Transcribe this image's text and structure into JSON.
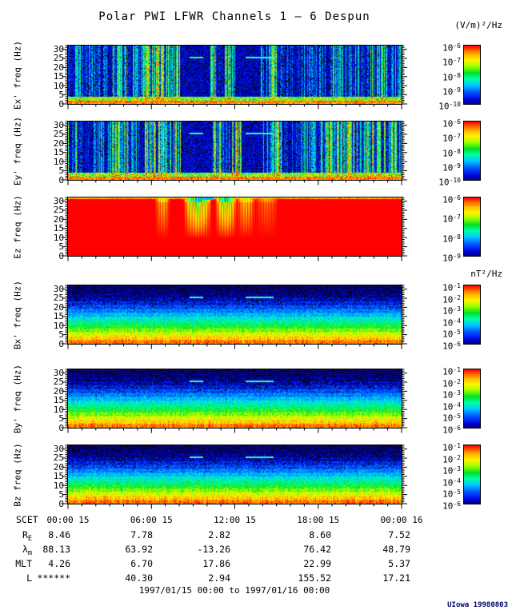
{
  "title": "Polar PWI LFWR Channels 1 — 6 Despun",
  "footer": {
    "credit": "UIowa 19980803"
  },
  "chart_data": {
    "type": "heatmap",
    "title": "Polar PWI LFWR Channels 1 — 6 Despun",
    "description": "Six stacked frequency-time spectrogram panels with rainbow color scale",
    "e_units_label": "(V/m)²/Hz",
    "b_units_label": "nT²/Hz",
    "time_axis": {
      "label": "SCET",
      "hours": 24,
      "major_tick_hours": 6,
      "minor_tick_hours": 1,
      "tick_labels": [
        "00:00 15",
        "06:00 15",
        "12:00 15",
        "18:00 15",
        "00:00 16"
      ],
      "range_text": "1997/01/15 00:00 to 1997/01/16 00:00"
    },
    "freq_axis": {
      "unit": "Hz",
      "min": 0,
      "max": 32,
      "ticks": [
        30,
        25,
        20,
        15,
        10,
        5,
        0
      ]
    },
    "panels": [
      {
        "id": "ex",
        "ylabel": "Ex' freq (Hz)",
        "quantity": "electric",
        "units": "(V/m)²/Hz",
        "colorbar_ticks": [
          "-6",
          "-7",
          "-8",
          "-9",
          "-10"
        ],
        "style": "electric",
        "seed": 11,
        "activity_profile": [
          [
            0,
            0.04,
            0.5
          ],
          [
            0.04,
            0.13,
            0.38
          ],
          [
            0.13,
            0.18,
            0.75
          ],
          [
            0.18,
            0.225,
            0.5
          ],
          [
            0.225,
            0.295,
            1.0
          ],
          [
            0.295,
            0.335,
            0.7
          ],
          [
            0.335,
            0.425,
            0.12
          ],
          [
            0.425,
            0.445,
            0.8
          ],
          [
            0.445,
            0.468,
            0.25
          ],
          [
            0.468,
            0.5,
            0.85
          ],
          [
            0.5,
            0.575,
            0.12
          ],
          [
            0.575,
            0.6,
            0.45
          ],
          [
            0.6,
            0.625,
            0.85
          ],
          [
            0.625,
            0.7,
            0.28
          ],
          [
            0.7,
            0.78,
            0.4
          ],
          [
            0.78,
            0.9,
            0.55
          ],
          [
            0.9,
            0.97,
            0.65
          ],
          [
            0.97,
            1,
            0.5
          ]
        ],
        "interference_lines": [
          {
            "f_hz": 26,
            "t0": 0.364,
            "t1": 0.403
          },
          {
            "f_hz": 26,
            "t0": 0.532,
            "t1": 0.615
          }
        ]
      },
      {
        "id": "ey",
        "ylabel": "Ey' freq (Hz)",
        "quantity": "electric",
        "units": "(V/m)²/Hz",
        "colorbar_ticks": [
          "-6",
          "-7",
          "-8",
          "-9",
          "-10"
        ],
        "style": "electric",
        "seed": 23,
        "activity_profile": [
          [
            0,
            0.025,
            0.7
          ],
          [
            0.025,
            0.06,
            0.3
          ],
          [
            0.06,
            0.13,
            0.45
          ],
          [
            0.13,
            0.19,
            0.8
          ],
          [
            0.19,
            0.23,
            0.6
          ],
          [
            0.23,
            0.305,
            1.0
          ],
          [
            0.305,
            0.34,
            0.7
          ],
          [
            0.34,
            0.43,
            0.15
          ],
          [
            0.43,
            0.46,
            0.85
          ],
          [
            0.46,
            0.49,
            0.4
          ],
          [
            0.49,
            0.52,
            0.9
          ],
          [
            0.52,
            0.585,
            0.15
          ],
          [
            0.585,
            0.61,
            0.5
          ],
          [
            0.61,
            0.64,
            0.9
          ],
          [
            0.64,
            0.7,
            0.3
          ],
          [
            0.7,
            0.76,
            0.5
          ],
          [
            0.76,
            0.9,
            0.8
          ],
          [
            0.9,
            0.99,
            0.85
          ],
          [
            0.99,
            1,
            0.6
          ]
        ],
        "interference_lines": [
          {
            "f_hz": 26,
            "t0": 0.364,
            "t1": 0.403
          },
          {
            "f_hz": 26,
            "t0": 0.532,
            "t1": 0.615
          }
        ]
      },
      {
        "id": "ez",
        "ylabel": "Ez freq (Hz)",
        "quantity": "electric",
        "units": "(V/m)²/Hz",
        "colorbar_ticks": [
          "-6",
          "-7",
          "-8",
          "-9"
        ],
        "style": "saturated",
        "seed": 37,
        "notches": [
          [
            0.26,
            0.305,
            0.35
          ],
          [
            0.345,
            0.43,
            0.92
          ],
          [
            0.44,
            0.505,
            0.85
          ],
          [
            0.505,
            0.56,
            0.4
          ],
          [
            0.56,
            0.63,
            0.18
          ]
        ],
        "interference_lines": []
      },
      {
        "id": "bx",
        "ylabel": "Bx' freq (Hz)",
        "quantity": "magnetic",
        "units": "nT²/Hz",
        "colorbar_ticks": [
          "-1",
          "-2",
          "-3",
          "-4",
          "-5",
          "-6"
        ],
        "style": "magnetic",
        "seed": 41,
        "interference_lines": [
          {
            "f_hz": 26,
            "t0": 0.364,
            "t1": 0.403
          },
          {
            "f_hz": 26,
            "t0": 0.532,
            "t1": 0.615
          }
        ]
      },
      {
        "id": "by",
        "ylabel": "By' freq (Hz)",
        "quantity": "magnetic",
        "units": "nT²/Hz",
        "colorbar_ticks": [
          "-1",
          "-2",
          "-3",
          "-4",
          "-5",
          "-6"
        ],
        "style": "magnetic",
        "seed": 53,
        "interference_lines": [
          {
            "f_hz": 26,
            "t0": 0.364,
            "t1": 0.403
          },
          {
            "f_hz": 26,
            "t0": 0.532,
            "t1": 0.615
          }
        ]
      },
      {
        "id": "bz",
        "ylabel": "Bz freq (Hz)",
        "quantity": "magnetic",
        "units": "nT²/Hz",
        "colorbar_ticks": [
          "-1",
          "-2",
          "-3",
          "-4",
          "-5",
          "-6"
        ],
        "style": "magnetic",
        "seed": 67,
        "interference_lines": [
          {
            "f_hz": 26,
            "t0": 0.364,
            "t1": 0.403
          },
          {
            "f_hz": 26,
            "t0": 0.532,
            "t1": 0.615
          }
        ]
      }
    ],
    "ephemeris": {
      "rows": [
        {
          "label": {
            "base": "R",
            "sub": "E"
          },
          "values": [
            "8.46",
            "7.78",
            "2.82",
            "8.60",
            "7.52"
          ]
        },
        {
          "label": {
            "base": "λ",
            "sub": "m"
          },
          "values": [
            "88.13",
            "63.92",
            "-13.26",
            "76.42",
            "48.79"
          ]
        },
        {
          "label": {
            "base": "MLT",
            "sub": ""
          },
          "values": [
            "4.26",
            "6.70",
            "17.86",
            "22.99",
            "5.37"
          ]
        },
        {
          "label": {
            "base": "L",
            "sub": ""
          },
          "values": [
            "******",
            "40.30",
            "2.94",
            "155.52",
            "17.21"
          ]
        }
      ]
    }
  }
}
